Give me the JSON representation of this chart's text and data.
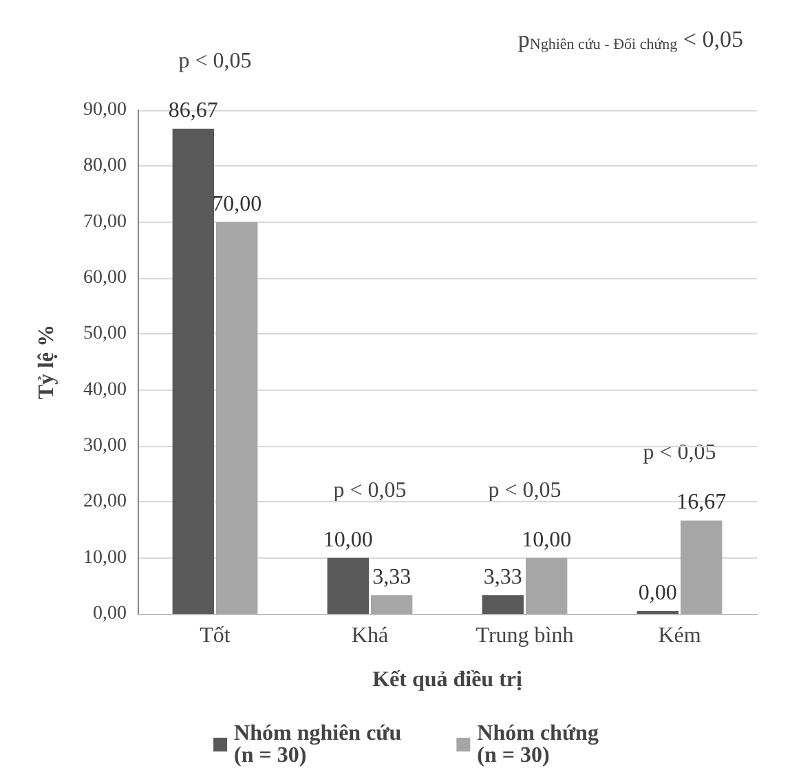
{
  "chart_data": {
    "type": "bar",
    "xlabel": "Kết quả điều trị",
    "ylabel": "Tỷ lệ %",
    "categories": [
      "Tốt",
      "Khá",
      "Trung bình",
      "Kém"
    ],
    "series": [
      {
        "name": "Nhóm nghiên cứu\n(n = 30)",
        "color": "#595959",
        "values": [
          86.67,
          10,
          3.33,
          0
        ],
        "value_labels": [
          "86,67",
          "10,00",
          "3,33",
          "0,00"
        ]
      },
      {
        "name": "Nhóm chứng\n(n = 30)",
        "color": "#a6a6a6",
        "values": [
          70,
          3.33,
          10,
          16.67
        ],
        "value_labels": [
          "70,00",
          "3,33",
          "10,00",
          "16,67"
        ]
      }
    ],
    "ylim": [
      0,
      90
    ],
    "yticks": [
      {
        "value": 0,
        "label": "0,00"
      },
      {
        "value": 10,
        "label": "10,00"
      },
      {
        "value": 20,
        "label": "20,00"
      },
      {
        "value": 30,
        "label": "30,00"
      },
      {
        "value": 40,
        "label": "40,00"
      },
      {
        "value": 50,
        "label": "50,00"
      },
      {
        "value": 60,
        "label": "60,00"
      },
      {
        "value": 70,
        "label": "70,00"
      },
      {
        "value": 80,
        "label": "80,00"
      },
      {
        "value": 90,
        "label": "90,00"
      }
    ],
    "annotations": [
      "p < 0,05",
      "p < 0,05",
      "p < 0,05",
      "p < 0,05",
      "p$_{Nghiên cứu - Đối chứng}$ < 0,05"
    ],
    "grid": "y",
    "legend": "bottom"
  }
}
